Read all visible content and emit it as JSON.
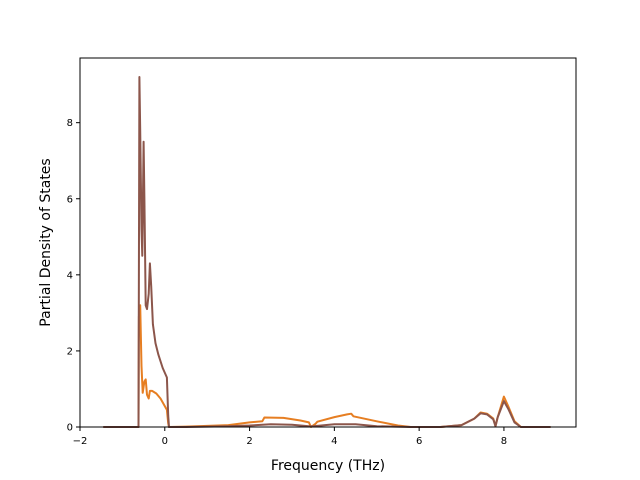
{
  "chart_data": {
    "type": "line",
    "title": "",
    "xlabel": "Frequency (THz)",
    "ylabel": "Partial Density of States",
    "xlim": [
      -2,
      9.7
    ],
    "ylim": [
      0,
      9.7
    ],
    "xticks": [
      -2,
      0,
      2,
      4,
      6,
      8
    ],
    "yticks": [
      0,
      2,
      4,
      6,
      8
    ],
    "xtick_labels": [
      "−2",
      "0",
      "2",
      "4",
      "6",
      "8"
    ],
    "ytick_labels": [
      "0",
      "2",
      "4",
      "6",
      "8"
    ],
    "grid": false,
    "legend": "none",
    "series": [
      {
        "color": "#e67e22",
        "points": [
          [
            -1.45,
            0
          ],
          [
            -0.62,
            0
          ],
          [
            -0.61,
            2.9
          ],
          [
            -0.58,
            3.2
          ],
          [
            -0.55,
            1.6
          ],
          [
            -0.52,
            0.9
          ],
          [
            -0.48,
            1.2
          ],
          [
            -0.45,
            1.25
          ],
          [
            -0.42,
            0.85
          ],
          [
            -0.38,
            0.75
          ],
          [
            -0.35,
            0.95
          ],
          [
            -0.3,
            0.95
          ],
          [
            -0.2,
            0.88
          ],
          [
            -0.1,
            0.75
          ],
          [
            0.0,
            0.55
          ],
          [
            0.05,
            0.45
          ],
          [
            0.08,
            0.1
          ],
          [
            0.1,
            0
          ],
          [
            0.5,
            0.01
          ],
          [
            1.5,
            0.05
          ],
          [
            2.0,
            0.12
          ],
          [
            2.3,
            0.15
          ],
          [
            2.35,
            0.25
          ],
          [
            2.8,
            0.24
          ],
          [
            3.2,
            0.17
          ],
          [
            3.4,
            0.12
          ],
          [
            3.45,
            0
          ],
          [
            3.55,
            0.08
          ],
          [
            3.6,
            0.14
          ],
          [
            4.0,
            0.26
          ],
          [
            4.3,
            0.33
          ],
          [
            4.4,
            0.35
          ],
          [
            4.45,
            0.28
          ],
          [
            5.0,
            0.15
          ],
          [
            5.5,
            0.04
          ],
          [
            5.8,
            0.0
          ],
          [
            6.5,
            0.0
          ],
          [
            7.0,
            0.05
          ],
          [
            7.3,
            0.22
          ],
          [
            7.45,
            0.38
          ],
          [
            7.6,
            0.35
          ],
          [
            7.75,
            0.22
          ],
          [
            7.8,
            0.02
          ],
          [
            7.85,
            0.25
          ],
          [
            8.0,
            0.8
          ],
          [
            8.1,
            0.55
          ],
          [
            8.25,
            0.15
          ],
          [
            8.4,
            0.0
          ],
          [
            9.1,
            0
          ]
        ]
      },
      {
        "color": "#8c564b",
        "points": [
          [
            -1.45,
            0
          ],
          [
            -0.62,
            0
          ],
          [
            -0.6,
            9.2
          ],
          [
            -0.58,
            7.8
          ],
          [
            -0.55,
            5.2
          ],
          [
            -0.53,
            4.5
          ],
          [
            -0.5,
            7.5
          ],
          [
            -0.48,
            6.0
          ],
          [
            -0.45,
            3.2
          ],
          [
            -0.42,
            3.1
          ],
          [
            -0.38,
            3.5
          ],
          [
            -0.35,
            4.3
          ],
          [
            -0.32,
            3.7
          ],
          [
            -0.28,
            2.7
          ],
          [
            -0.22,
            2.2
          ],
          [
            -0.15,
            1.9
          ],
          [
            -0.05,
            1.55
          ],
          [
            0.05,
            1.3
          ],
          [
            0.08,
            0.3
          ],
          [
            0.1,
            0
          ],
          [
            0.5,
            0.0
          ],
          [
            1.5,
            0.02
          ],
          [
            2.0,
            0.04
          ],
          [
            2.5,
            0.07
          ],
          [
            3.0,
            0.06
          ],
          [
            3.4,
            0.02
          ],
          [
            3.5,
            0.02
          ],
          [
            4.0,
            0.07
          ],
          [
            4.5,
            0.07
          ],
          [
            5.0,
            0.02
          ],
          [
            5.8,
            0.0
          ],
          [
            6.5,
            0.0
          ],
          [
            7.0,
            0.05
          ],
          [
            7.3,
            0.22
          ],
          [
            7.45,
            0.36
          ],
          [
            7.6,
            0.33
          ],
          [
            7.75,
            0.2
          ],
          [
            7.8,
            0.02
          ],
          [
            7.85,
            0.25
          ],
          [
            8.0,
            0.68
          ],
          [
            8.1,
            0.48
          ],
          [
            8.25,
            0.12
          ],
          [
            8.4,
            0.0
          ],
          [
            9.1,
            0
          ]
        ]
      }
    ]
  }
}
